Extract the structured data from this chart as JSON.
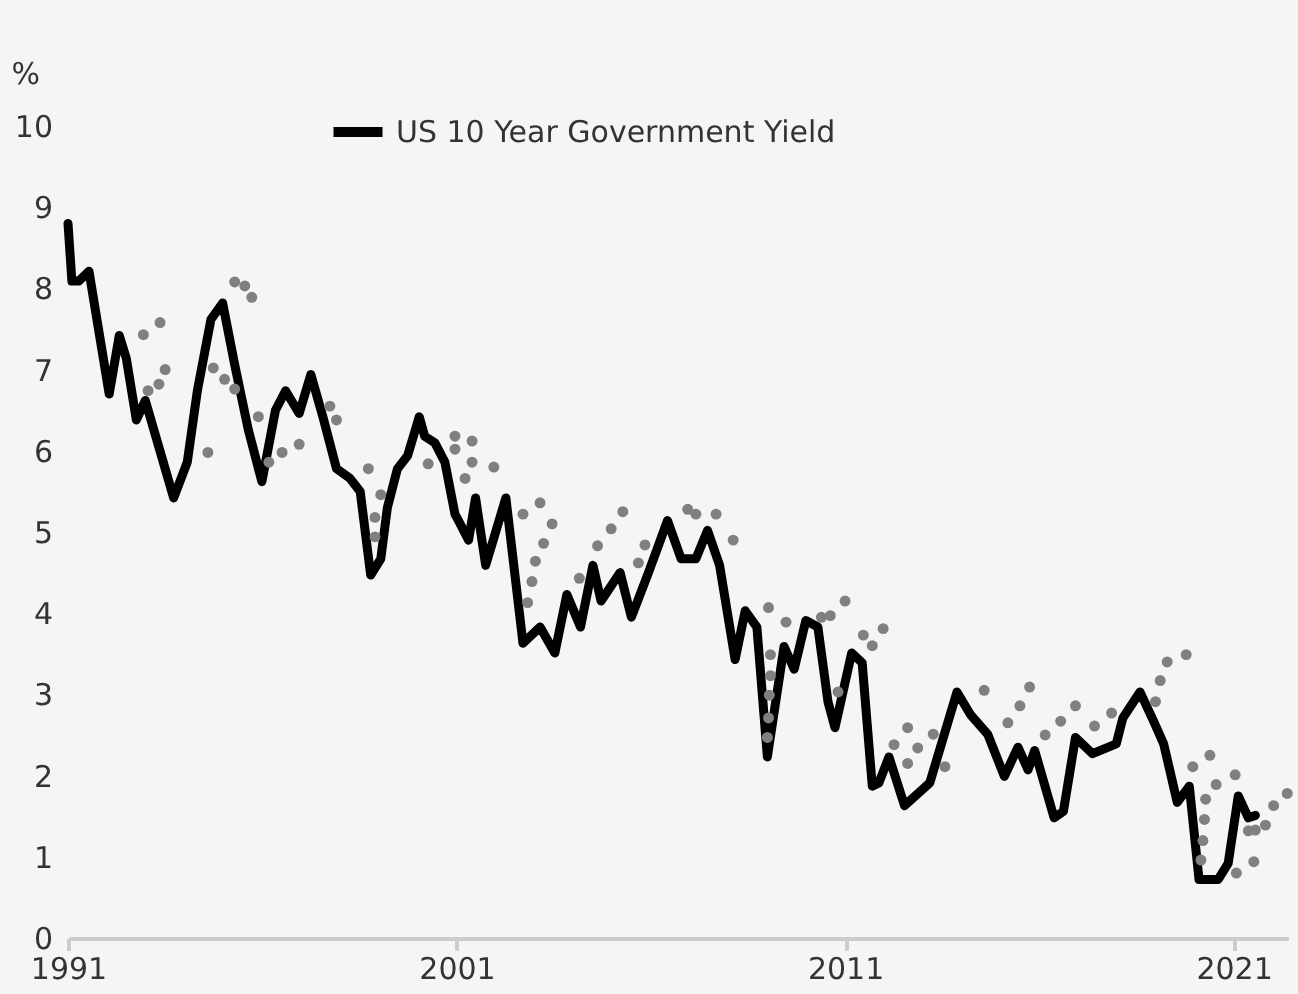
{
  "chart_data": {
    "type": "line",
    "ylabel": "%",
    "xlim": [
      1991,
      2022.4
    ],
    "xticks": [
      1991,
      2001,
      2011,
      2021
    ],
    "ylim": [
      0,
      10
    ],
    "yticks": [
      0,
      1,
      2,
      3,
      4,
      5,
      6,
      7,
      8,
      9,
      10
    ],
    "grid": false,
    "legend": "top",
    "series": [
      {
        "name": "US 10 Year Government Yield",
        "color": "#000000",
        "type": "line",
        "marker": "none",
        "x": [
          1991.0,
          1991.1,
          1991.28,
          1991.54,
          1992.06,
          1992.32,
          1992.5,
          1992.76,
          1992.99,
          1993.72,
          1994.07,
          1994.33,
          1994.68,
          1994.98,
          1995.29,
          1995.64,
          1995.99,
          1996.34,
          1996.6,
          1996.95,
          1997.25,
          1997.56,
          1997.91,
          1998.26,
          1998.52,
          1998.79,
          1999.05,
          1999.22,
          1999.48,
          1999.74,
          2000.04,
          2000.18,
          2000.44,
          2000.7,
          2000.96,
          2001.05,
          2001.31,
          2001.49,
          2001.75,
          2002.27,
          2002.71,
          2003.15,
          2003.53,
          2003.84,
          2004.19,
          2004.51,
          2004.72,
          2005.21,
          2005.5,
          2005.94,
          2006.43,
          2006.78,
          2007.16,
          2007.46,
          2007.77,
          2008.17,
          2008.43,
          2008.73,
          2009.0,
          2009.43,
          2009.69,
          2009.99,
          2010.3,
          2010.56,
          2010.74,
          2011.17,
          2011.44,
          2011.7,
          2011.87,
          2012.13,
          2012.53,
          2013.18,
          2013.88,
          2014.23,
          2014.67,
          2015.1,
          2015.45,
          2015.71,
          2015.88,
          2016.38,
          2016.62,
          2016.93,
          2017.37,
          2017.98,
          2018.15,
          2018.59,
          2018.94,
          2019.2,
          2019.55,
          2019.86,
          2020.11,
          2020.6,
          2020.86,
          2021.12,
          2021.38,
          2021.56
        ],
        "values": [
          8.8,
          8.09,
          8.09,
          8.21,
          6.7,
          7.42,
          7.14,
          6.38,
          6.62,
          5.42,
          5.86,
          6.74,
          7.62,
          7.82,
          7.06,
          6.26,
          5.62,
          6.5,
          6.74,
          6.46,
          6.94,
          6.42,
          5.78,
          5.66,
          5.5,
          4.47,
          4.67,
          5.3,
          5.78,
          5.94,
          6.42,
          6.18,
          6.1,
          5.86,
          5.22,
          5.14,
          4.9,
          5.42,
          4.59,
          5.42,
          3.63,
          3.83,
          3.51,
          4.23,
          3.83,
          4.59,
          4.15,
          4.5,
          3.95,
          4.5,
          5.14,
          4.67,
          4.67,
          5.02,
          4.59,
          3.43,
          4.03,
          3.83,
          2.23,
          3.59,
          3.31,
          3.91,
          3.83,
          2.91,
          2.59,
          3.51,
          3.39,
          1.87,
          1.91,
          2.23,
          1.63,
          1.91,
          3.03,
          2.75,
          2.51,
          1.99,
          2.35,
          2.07,
          2.31,
          1.48,
          1.56,
          2.47,
          2.27,
          2.39,
          2.71,
          3.03,
          2.67,
          2.39,
          1.67,
          1.87,
          0.72,
          0.72,
          0.92,
          1.75,
          1.48,
          1.51
        ]
      },
      {
        "color": "#808080",
        "type": "scatter",
        "marker": "circle",
        "x": [
          1992.94,
          1993.37,
          1993.5,
          1993.34,
          1993.06,
          1994.6,
          1995.29,
          1995.55,
          1995.73,
          1994.74,
          1995.03,
          1995.29,
          1995.9,
          1996.17,
          1996.51,
          1996.95,
          1997.74,
          1997.91,
          1998.73,
          1999.05,
          1998.9,
          1998.9,
          2000.27,
          2000.96,
          2000.96,
          2001.4,
          2001.4,
          2001.22,
          2001.96,
          2002.71,
          2003.15,
          2003.46,
          2003.24,
          2003.03,
          2002.94,
          2002.83,
          2004.16,
          2004.63,
          2004.98,
          2005.28,
          2005.68,
          2005.85,
          2006.95,
          2007.16,
          2007.68,
          2008.12,
          2009.03,
          2009.08,
          2009.08,
          2009.05,
          2009.03,
          2009.0,
          2009.48,
          2010.39,
          2010.62,
          2011.0,
          2011.47,
          2011.7,
          2011.98,
          2010.82,
          2012.26,
          2012.61,
          2012.61,
          2012.87,
          2013.27,
          2013.57,
          2014.58,
          2015.19,
          2015.5,
          2015.75,
          2016.15,
          2016.55,
          2016.93,
          2017.42,
          2017.86,
          2018.99,
          2019.11,
          2019.29,
          2019.78,
          2019.95,
          2020.39,
          2020.55,
          2020.28,
          2020.25,
          2020.21,
          2020.16,
          2021.04,
          2021.07,
          2021.52,
          2021.38,
          2021.56,
          2021.82,
          2022.03,
          2022.38
        ],
        "values": [
          7.43,
          7.58,
          7.0,
          6.82,
          6.74,
          5.98,
          8.08,
          8.03,
          7.89,
          7.02,
          6.88,
          6.76,
          6.42,
          5.86,
          5.98,
          6.08,
          6.55,
          6.38,
          5.78,
          5.46,
          5.18,
          4.94,
          5.84,
          6.18,
          6.02,
          6.12,
          5.86,
          5.66,
          5.8,
          5.22,
          5.36,
          5.1,
          4.86,
          4.64,
          4.39,
          4.13,
          4.43,
          4.83,
          5.04,
          5.25,
          4.62,
          4.84,
          5.28,
          5.22,
          5.22,
          4.9,
          4.07,
          3.49,
          3.23,
          2.99,
          2.71,
          2.47,
          3.89,
          3.95,
          3.97,
          4.15,
          3.73,
          3.6,
          3.81,
          3.03,
          2.38,
          2.59,
          2.15,
          2.34,
          2.51,
          2.11,
          3.05,
          2.65,
          2.86,
          3.09,
          2.5,
          2.67,
          2.86,
          2.61,
          2.77,
          2.91,
          3.17,
          3.4,
          3.49,
          2.11,
          2.25,
          1.89,
          1.71,
          1.46,
          1.2,
          0.96,
          2.01,
          0.8,
          0.94,
          1.32,
          1.33,
          1.39,
          1.63,
          1.78
        ]
      }
    ]
  }
}
